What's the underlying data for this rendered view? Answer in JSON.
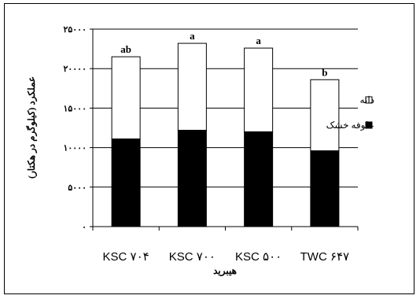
{
  "chart_data": {
    "type": "bar",
    "stacked": true,
    "categories": [
      "KSC ۷۰۴",
      "KSC ۷۰۰",
      "KSC ۵۰۰",
      "TWC ۶۴۷"
    ],
    "series": [
      {
        "name": "علوفه خشک",
        "values": [
          11100,
          12200,
          12000,
          9600
        ],
        "color": "#000000"
      },
      {
        "name": "دانه",
        "values": [
          10400,
          11000,
          10600,
          9000
        ],
        "color": "#ffffff"
      }
    ],
    "significance_letters": [
      "ab",
      "a",
      "a",
      "b"
    ],
    "xlabel": "هیبرید",
    "ylabel": "عملکرد (کیلوگرم در هکتار)",
    "ylim": [
      0,
      25000
    ],
    "y_ticks": [
      0,
      5000,
      10000,
      15000,
      20000,
      25000
    ],
    "y_tick_labels": [
      "۰",
      "۵۰۰۰",
      "۱۰۰۰۰",
      "۱۵۰۰۰",
      "۲۰۰۰۰",
      "۲۵۰۰۰"
    ],
    "grid": true,
    "legend_position": "right"
  }
}
